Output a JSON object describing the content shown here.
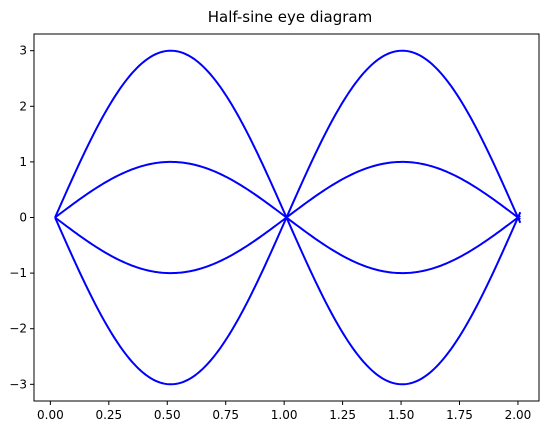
{
  "chart_data": {
    "type": "line",
    "title": "Half-sine eye diagram",
    "xlabel": "",
    "ylabel": "",
    "xlim": [
      -0.07,
      2.09
    ],
    "ylim": [
      -3.3,
      3.3
    ],
    "grid": false,
    "legend": "none",
    "line_color": "#0000ff",
    "x_ticks": [
      0.0,
      0.25,
      0.5,
      0.75,
      1.0,
      1.25,
      1.5,
      1.75,
      2.0
    ],
    "x_tick_labels": [
      "0.00",
      "0.25",
      "0.50",
      "0.75",
      "1.00",
      "1.25",
      "1.50",
      "1.75",
      "2.00"
    ],
    "y_ticks": [
      -3,
      -2,
      -1,
      0,
      1,
      2,
      3
    ],
    "y_tick_labels": [
      "−3",
      "−2",
      "−1",
      "0",
      "1",
      "2",
      "3"
    ],
    "series": [
      {
        "x_start": 0.02,
        "x_end": 2.01,
        "center": 0.515,
        "period": 0.99,
        "amplitude": 3
      },
      {
        "x_start": 0.02,
        "x_end": 2.01,
        "center": 0.515,
        "period": 0.99,
        "amplitude": 1
      },
      {
        "x_start": 0.02,
        "x_end": 2.01,
        "center": 0.515,
        "period": 0.99,
        "amplitude": -1
      },
      {
        "x_start": 0.02,
        "x_end": 2.01,
        "center": 0.515,
        "period": 0.99,
        "amplitude": -3
      }
    ]
  }
}
